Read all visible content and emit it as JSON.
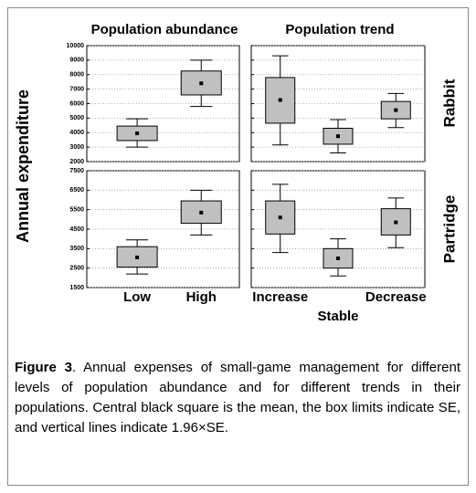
{
  "column_titles": [
    "Population abundance",
    "Population trend"
  ],
  "row_labels": [
    "Rabbit",
    "Partridge"
  ],
  "y_label": "Annual expenditure",
  "chart_data": [
    {
      "type": "box",
      "ylim": [
        2000,
        10000
      ],
      "yticks": [
        2000,
        3000,
        4000,
        5000,
        6000,
        7000,
        8000,
        9000,
        10000
      ],
      "grid": true,
      "boxes": [
        {
          "whisker_low": 3000,
          "box_low": 3450,
          "mean": 3950,
          "box_high": 4450,
          "whisker_high": 4950
        },
        {
          "whisker_low": 5800,
          "box_low": 6600,
          "mean": 7400,
          "box_high": 8250,
          "whisker_high": 9000
        }
      ]
    },
    {
      "type": "box",
      "ylim": [
        2000,
        10000
      ],
      "yticks": [
        2000,
        3000,
        4000,
        5000,
        6000,
        7000,
        8000,
        9000,
        10000
      ],
      "grid": true,
      "boxes": [
        {
          "whisker_low": 3150,
          "box_low": 4650,
          "mean": 6250,
          "box_high": 7800,
          "whisker_high": 9300
        },
        {
          "whisker_low": 2600,
          "box_low": 3200,
          "mean": 3750,
          "box_high": 4300,
          "whisker_high": 4900
        },
        {
          "whisker_low": 4350,
          "box_low": 4950,
          "mean": 5550,
          "box_high": 6150,
          "whisker_high": 6700
        }
      ]
    },
    {
      "type": "box",
      "ylim": [
        1500,
        7500
      ],
      "yticks": [
        1500,
        2500,
        3500,
        4500,
        5500,
        6500,
        7500
      ],
      "grid": true,
      "categories": [
        "Low",
        "High"
      ],
      "boxes": [
        {
          "whisker_low": 2200,
          "box_low": 2550,
          "mean": 3050,
          "box_high": 3600,
          "whisker_high": 3950
        },
        {
          "whisker_low": 4200,
          "box_low": 4800,
          "mean": 5350,
          "box_high": 5950,
          "whisker_high": 6500
        }
      ]
    },
    {
      "type": "box",
      "ylim": [
        1500,
        7500
      ],
      "yticks": [
        1500,
        2500,
        3500,
        4500,
        5500,
        6500,
        7500
      ],
      "grid": true,
      "categories": [
        "Increase",
        "Stable",
        "Decrease"
      ],
      "boxes": [
        {
          "whisker_low": 3300,
          "box_low": 4250,
          "mean": 5100,
          "box_high": 5950,
          "whisker_high": 6800
        },
        {
          "whisker_low": 2100,
          "box_low": 2500,
          "mean": 3000,
          "box_high": 3500,
          "whisker_high": 4000
        },
        {
          "whisker_low": 3550,
          "box_low": 4200,
          "mean": 4850,
          "box_high": 5550,
          "whisker_high": 6100
        }
      ]
    }
  ],
  "caption": {
    "label": "Figure 3",
    "text": ". Annual expenses of small-game management for different levels of population abundance and for different trends in their populations. Central black square is the mean, the box limits indicate SE, and vertical lines indicate 1.96×SE."
  }
}
